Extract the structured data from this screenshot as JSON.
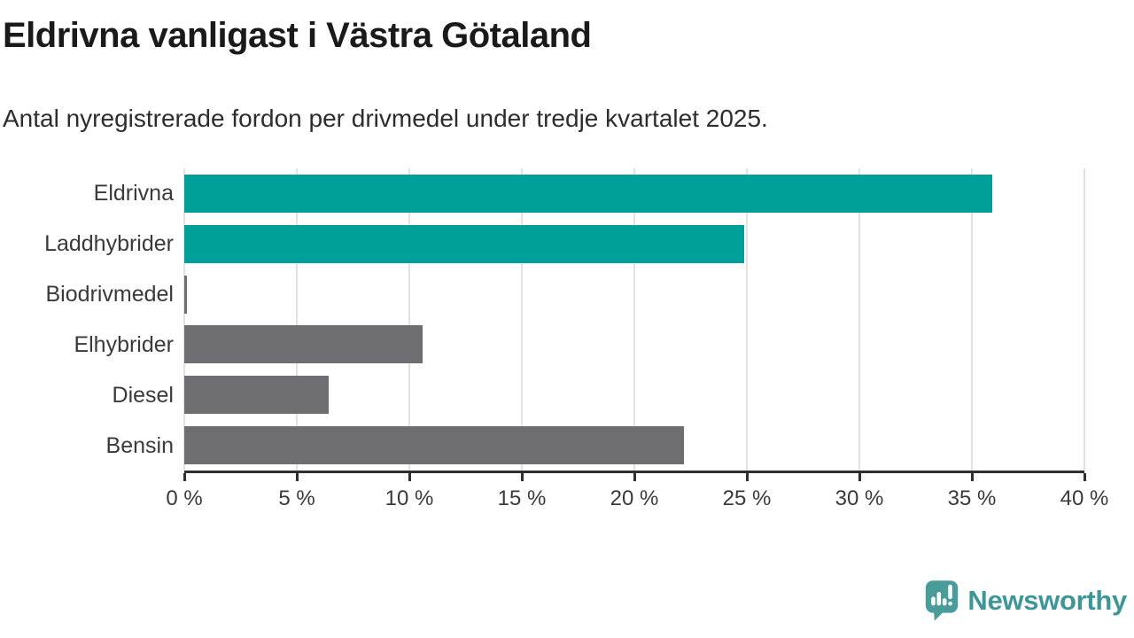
{
  "header": {
    "title": "Eldrivna vanligast i Västra Götaland",
    "subtitle": "Antal nyregistrerade fordon per drivmedel under tredje kvartalet 2025."
  },
  "chart_data": {
    "type": "bar",
    "orientation": "horizontal",
    "title": "Eldrivna vanligast i Västra Götaland",
    "subtitle": "Antal nyregistrerade fordon per drivmedel under tredje kvartalet 2025.",
    "categories": [
      "Eldrivna",
      "Laddhybrider",
      "Biodrivmedel",
      "Elhybrider",
      "Diesel",
      "Bensin"
    ],
    "values": [
      35.9,
      24.9,
      0.1,
      10.6,
      6.4,
      22.2
    ],
    "unit": "%",
    "bar_colors": [
      "#00A09A",
      "#00A09A",
      "#6D6D72",
      "#6D6D72",
      "#6D6D72",
      "#6D6D72"
    ],
    "xlabel": "",
    "ylabel": "",
    "xlim": [
      0,
      40
    ],
    "x_ticks": [
      0,
      5,
      10,
      15,
      20,
      25,
      30,
      35,
      40
    ],
    "x_tick_labels": [
      "0 %",
      "5 %",
      "10 %",
      "15 %",
      "20 %",
      "25 %",
      "30 %",
      "35 %",
      "40 %"
    ],
    "grid": "vertical-gridlines",
    "legend": "none",
    "accent_color": "#00A09A",
    "muted_color": "#6D6D72",
    "gridline_color": "#E2E2E2",
    "axis_color": "#2F2F2F",
    "text_color": "#3A3A3A"
  },
  "footer": {
    "brand": "Newsworthy",
    "brand_text_color": "#3F9697",
    "brand_icon_color": "#4A9C9A",
    "brand_icon": "newsworthy-speech-bubble-barchart-icon"
  }
}
